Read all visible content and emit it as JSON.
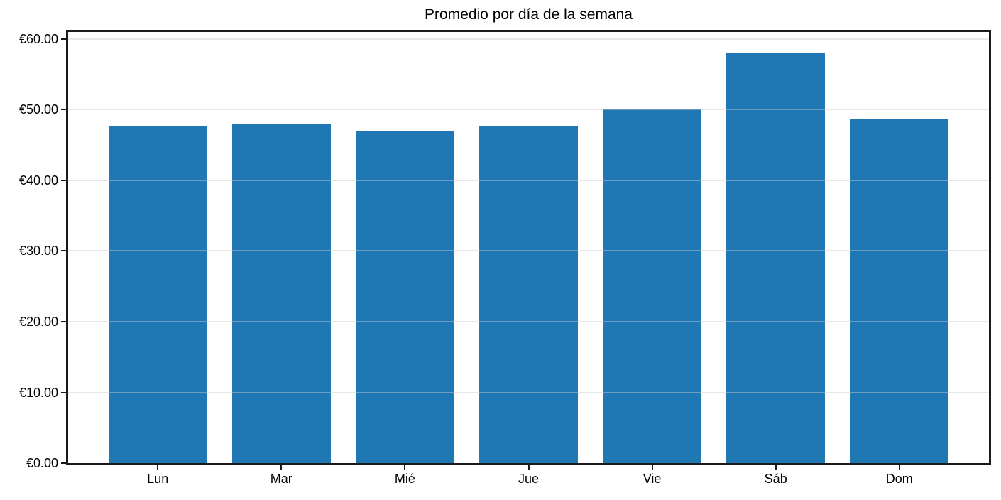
{
  "chart_data": {
    "type": "bar",
    "title": "Promedio por día de la semana",
    "categories": [
      "Lun",
      "Mar",
      "Mié",
      "Jue",
      "Vie",
      "Sáb",
      "Dom"
    ],
    "values": [
      47.6,
      48.0,
      46.9,
      47.7,
      50.1,
      58.1,
      48.7
    ],
    "xlabel": "",
    "ylabel": "",
    "y_ticks": [
      0,
      10,
      20,
      30,
      40,
      50,
      60
    ],
    "y_tick_labels": [
      "€0.00",
      "€10.00",
      "€20.00",
      "€30.00",
      "€40.00",
      "€50.00",
      "€60.00"
    ],
    "ylim": [
      0,
      61.0
    ],
    "grid": "horizontal",
    "legend": "none",
    "colors": {
      "bar": "#1f77b4",
      "grid": "#e7e7e7",
      "axis": "#1a1a1a",
      "text": "#000000"
    }
  }
}
